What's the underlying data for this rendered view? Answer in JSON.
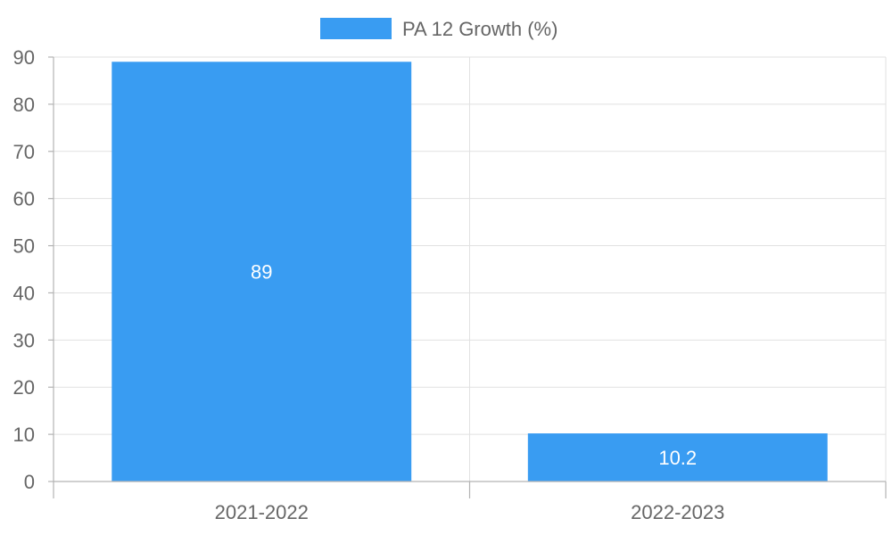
{
  "chart_data": {
    "type": "bar",
    "categories": [
      "2021-2022",
      "2022-2023"
    ],
    "series": [
      {
        "name": "PA 12 Growth (%)",
        "values": [
          89,
          10.2
        ],
        "color": "#399cf2"
      }
    ],
    "data_labels": [
      "89",
      "10.2"
    ],
    "y_ticks": [
      0,
      10,
      20,
      30,
      40,
      50,
      60,
      70,
      80,
      90
    ],
    "ylim": [
      0,
      90
    ],
    "grid": true,
    "legend_position": "top-center",
    "title": "",
    "xlabel": "",
    "ylabel": ""
  }
}
